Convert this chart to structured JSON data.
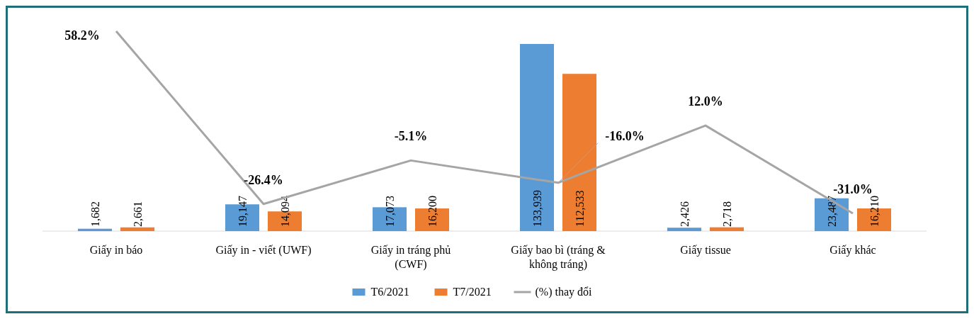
{
  "chart_data": {
    "type": "bar",
    "categories": [
      "Giấy in báo",
      "Giấy in - viết (UWF)",
      "Giấy in tráng phủ (CWF)",
      "Giấy bao bì (tráng & không tráng)",
      "Giấy tissue",
      "Giấy khác"
    ],
    "series": [
      {
        "name": "T6/2021",
        "color": "#5b9bd5",
        "values": [
          1682,
          19147,
          17073,
          133939,
          2426,
          23487
        ],
        "value_labels": [
          "1,682",
          "19,147",
          "17,073",
          "133,939",
          "2,426",
          "23,487"
        ]
      },
      {
        "name": "T7/2021",
        "color": "#ed7d31",
        "values": [
          2661,
          14094,
          16200,
          112533,
          2718,
          16210
        ],
        "value_labels": [
          "2,661",
          "14,094",
          "16,200",
          "112,533",
          "2,718",
          "16,210"
        ]
      },
      {
        "name": "(%) thay đổi",
        "type": "line",
        "axis": "y2",
        "color": "#a5a5a5",
        "values": [
          58.2,
          -26.4,
          -5.1,
          -16.0,
          12.0,
          -31.0
        ],
        "value_labels": [
          "58.2%",
          "-26.4%",
          "-5.1%",
          "-16.0%",
          "12.0%",
          "-31.0%"
        ]
      }
    ],
    "legend": "bottom"
  }
}
